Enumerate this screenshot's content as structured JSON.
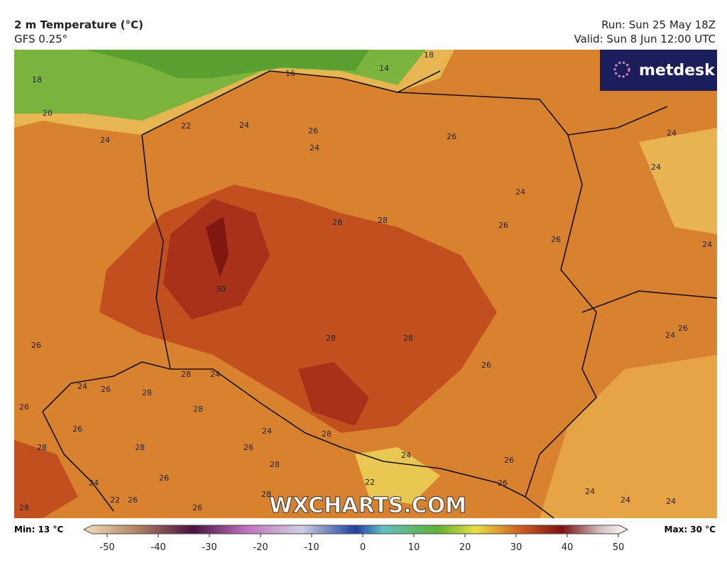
{
  "header": {
    "title": "2 m Temperature (°C)",
    "model": "GFS 0.25°",
    "run": "Run: Sun 25 May 18Z",
    "valid": "Valid: Sun 8 Jun 12:00 UTC"
  },
  "logo": "metdesk",
  "watermark": "WXCHARTS.COM",
  "map": {
    "labels": [
      16,
      14,
      18,
      18,
      20,
      22,
      24,
      26,
      24,
      26,
      24,
      24,
      24,
      24,
      28,
      28,
      26,
      26,
      24,
      30,
      28,
      28,
      26,
      24,
      26,
      26,
      28,
      24,
      24,
      26,
      28,
      26,
      28,
      26,
      24,
      28,
      28,
      28,
      26,
      24,
      28,
      26,
      26,
      24,
      22,
      26,
      22,
      26,
      28,
      24,
      24,
      24,
      28,
      26
    ]
  },
  "colorbar": {
    "min": "Min: 13 °C",
    "max": "Max: 30 °C",
    "ticks": [
      -50,
      -40,
      -30,
      -20,
      -10,
      0,
      10,
      20,
      30,
      40,
      50
    ]
  }
}
